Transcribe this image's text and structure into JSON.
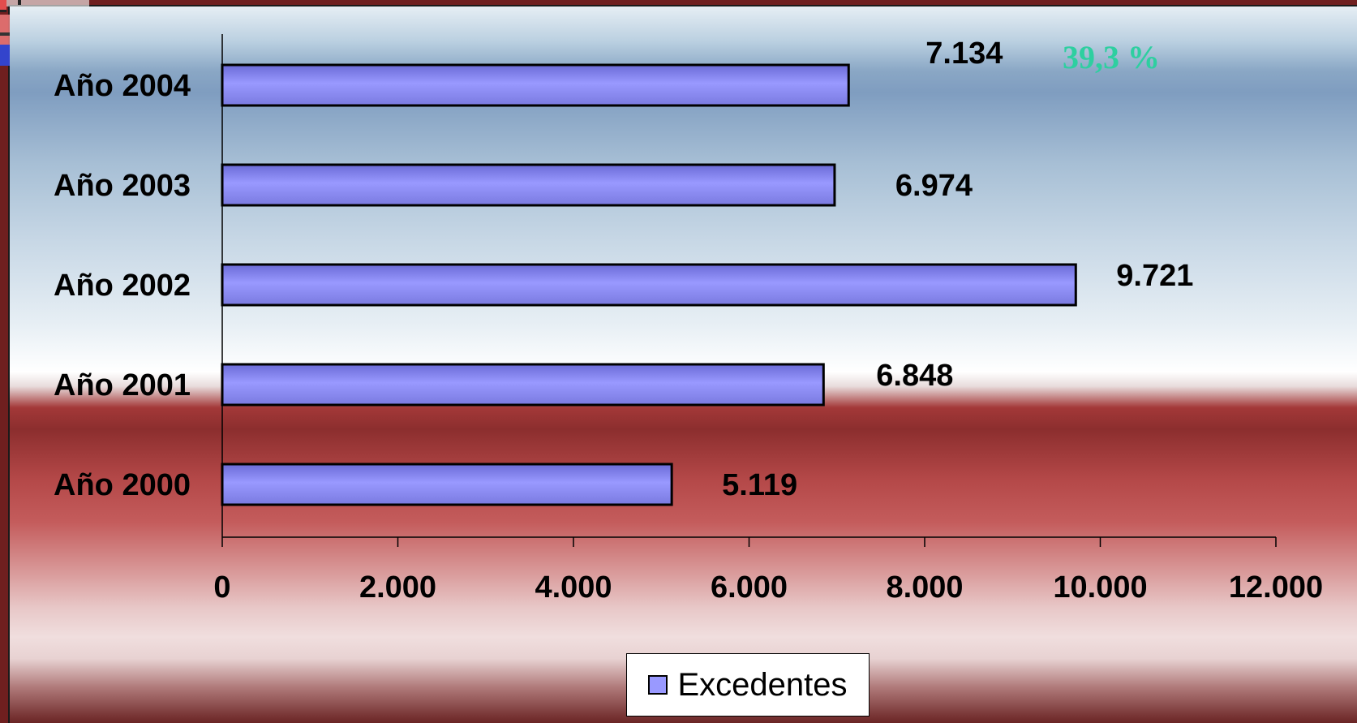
{
  "colors": {
    "bar_fill": "#9999ff",
    "bar_stroke": "#000000",
    "note_color": "#2ecfa0"
  },
  "chart_data": {
    "type": "bar",
    "orientation": "horizontal",
    "categories": [
      "Año 2004",
      "Año 2003",
      "Año 2002",
      "Año 2001",
      "Año 2000"
    ],
    "series": [
      {
        "name": "Excedentes",
        "values": [
          7134,
          6974,
          9721,
          6848,
          5119
        ],
        "value_labels": [
          "7.134",
          "6.974",
          "9.721",
          "6.848",
          "5.119"
        ]
      }
    ],
    "xlim": [
      0,
      12000
    ],
    "x_ticks": [
      0,
      2000,
      4000,
      6000,
      8000,
      10000,
      12000
    ],
    "x_tick_labels": [
      "0",
      "2.000",
      "4.000",
      "6.000",
      "8.000",
      "10.000",
      "12.000"
    ],
    "title": "",
    "xlabel": "",
    "ylabel": "",
    "grid": false,
    "legend": {
      "position": "bottom",
      "entries": [
        "Excedentes"
      ]
    },
    "annotations": [
      {
        "text": "39,3 %",
        "near_category": "Año 2004"
      }
    ]
  }
}
